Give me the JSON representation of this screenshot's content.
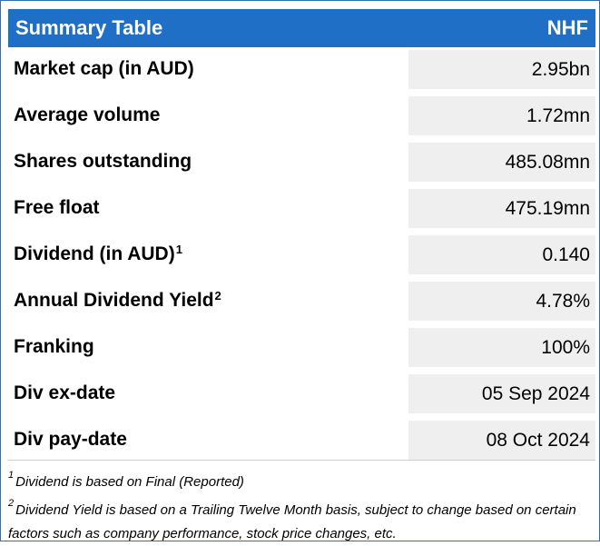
{
  "table": {
    "title": "Summary Table",
    "ticker": "NHF",
    "rows": [
      {
        "label": "Market cap (in AUD)",
        "sup": "",
        "value": "2.95bn"
      },
      {
        "label": "Average volume",
        "sup": "",
        "value": "1.72mn"
      },
      {
        "label": "Shares outstanding",
        "sup": "",
        "value": "485.08mn"
      },
      {
        "label": "Free float",
        "sup": "",
        "value": "475.19mn"
      },
      {
        "label": "Dividend (in AUD)",
        "sup": "1",
        "value": "0.140"
      },
      {
        "label": "Annual Dividend Yield",
        "sup": "2",
        "value": "4.78%"
      },
      {
        "label": "Franking",
        "sup": "",
        "value": "100%"
      },
      {
        "label": "Div ex-date",
        "sup": "",
        "value": "05 Sep 2024"
      },
      {
        "label": "Div pay-date",
        "sup": "",
        "value": "08 Oct 2024"
      }
    ]
  },
  "footnotes": [
    {
      "mark": "1",
      "text": "Dividend is based on Final (Reported)"
    },
    {
      "mark": "2",
      "text": "Dividend Yield is based on a Trailing Twelve Month basis, subject to change based on certain factors such as company performance, stock price changes, etc."
    }
  ],
  "colors": {
    "header_bg": "#1f6fc7",
    "value_bg": "#efefef",
    "border": "#2f6fb5"
  }
}
